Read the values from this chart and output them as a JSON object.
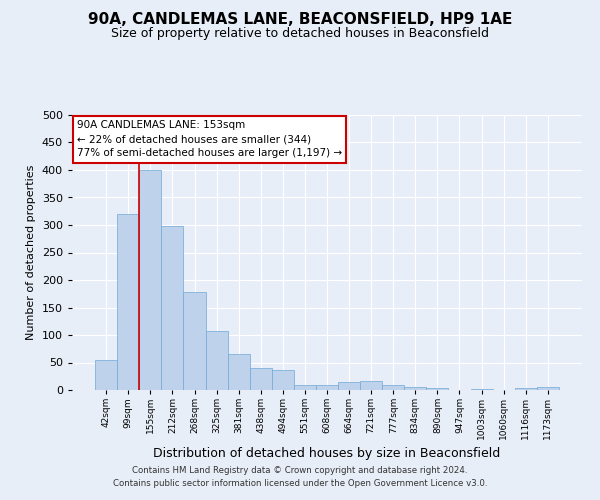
{
  "title": "90A, CANDLEMAS LANE, BEACONSFIELD, HP9 1AE",
  "subtitle": "Size of property relative to detached houses in Beaconsfield",
  "xlabel": "Distribution of detached houses by size in Beaconsfield",
  "ylabel": "Number of detached properties",
  "bin_labels": [
    "42sqm",
    "99sqm",
    "155sqm",
    "212sqm",
    "268sqm",
    "325sqm",
    "381sqm",
    "438sqm",
    "494sqm",
    "551sqm",
    "608sqm",
    "664sqm",
    "721sqm",
    "777sqm",
    "834sqm",
    "890sqm",
    "947sqm",
    "1003sqm",
    "1060sqm",
    "1116sqm",
    "1173sqm"
  ],
  "bar_values": [
    55,
    320,
    400,
    298,
    178,
    108,
    65,
    40,
    37,
    10,
    10,
    15,
    17,
    9,
    6,
    4,
    0,
    1,
    0,
    4,
    6
  ],
  "bar_color": "#bed3eb",
  "bar_edge_color": "#6fa8d6",
  "vline_color": "#cc0000",
  "annotation_title": "90A CANDLEMAS LANE: 153sqm",
  "annotation_line1": "← 22% of detached houses are smaller (344)",
  "annotation_line2": "77% of semi-detached houses are larger (1,197) →",
  "annotation_box_facecolor": "#ffffff",
  "annotation_box_edgecolor": "#cc0000",
  "ylim": [
    0,
    500
  ],
  "yticks": [
    0,
    50,
    100,
    150,
    200,
    250,
    300,
    350,
    400,
    450,
    500
  ],
  "footer1": "Contains HM Land Registry data © Crown copyright and database right 2024.",
  "footer2": "Contains public sector information licensed under the Open Government Licence v3.0.",
  "bg_color": "#e8eef8",
  "plot_bg_color": "#e8eef8",
  "title_fontsize": 11,
  "subtitle_fontsize": 9,
  "ylabel_fontsize": 8,
  "xlabel_fontsize": 9
}
